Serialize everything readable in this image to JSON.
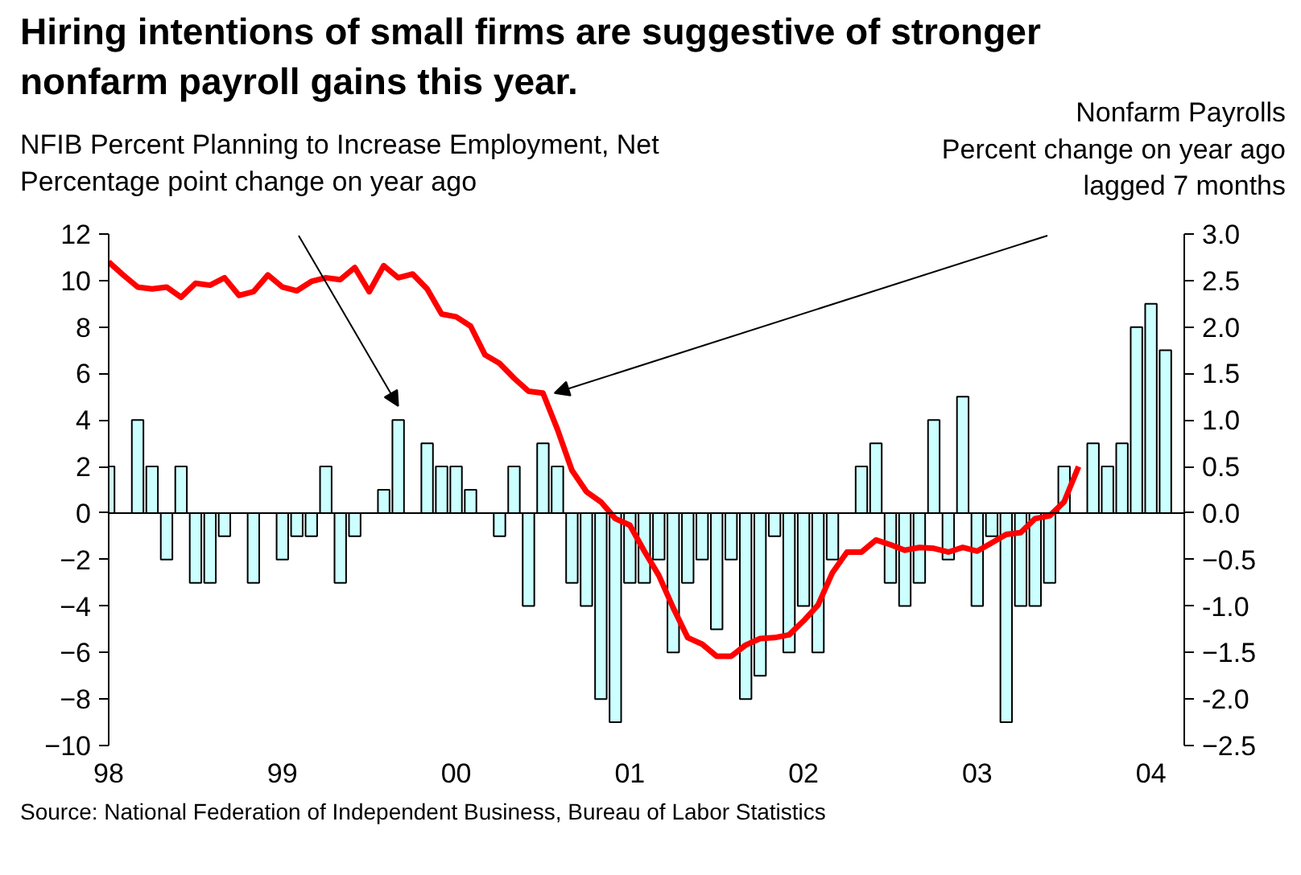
{
  "chart_data": {
    "type": "bar",
    "title": "Hiring intentions of small firms are suggestive of stronger\nnonfarm payroll gains this year.",
    "ylabel": "NFIB Percent Planning to Increase Employment, Net\nPercentage point change on year ago",
    "y2label": "Nonfarm Payrolls\nPercent change on year ago\nlagged 7 months",
    "annotations": [
      "Source: National Federation of Independent Business, Bureau of Labor Statistics"
    ],
    "x": [
      "1998-01",
      "1998-02",
      "1998-03",
      "1998-04",
      "1998-05",
      "1998-06",
      "1998-07",
      "1998-08",
      "1998-09",
      "1998-10",
      "1998-11",
      "1998-12",
      "1999-01",
      "1999-02",
      "1999-03",
      "1999-04",
      "1999-05",
      "1999-06",
      "1999-07",
      "1999-08",
      "1999-09",
      "1999-10",
      "1999-11",
      "1999-12",
      "2000-01",
      "2000-02",
      "2000-03",
      "2000-04",
      "2000-05",
      "2000-06",
      "2000-07",
      "2000-08",
      "2000-09",
      "2000-10",
      "2000-11",
      "2000-12",
      "2001-01",
      "2001-02",
      "2001-03",
      "2001-04",
      "2001-05",
      "2001-06",
      "2001-07",
      "2001-08",
      "2001-09",
      "2001-10",
      "2001-11",
      "2001-12",
      "2002-01",
      "2002-02",
      "2002-03",
      "2002-04",
      "2002-05",
      "2002-06",
      "2002-07",
      "2002-08",
      "2002-09",
      "2002-10",
      "2002-11",
      "2002-12",
      "2003-01",
      "2003-02",
      "2003-03",
      "2003-04",
      "2003-05",
      "2003-06",
      "2003-07",
      "2003-08",
      "2003-09",
      "2003-10",
      "2003-11",
      "2003-12",
      "2004-01",
      "2004-02"
    ],
    "series": [
      {
        "color": "#ccffff",
        "values": [
          2,
          null,
          4,
          2,
          -2,
          2,
          -3,
          -3,
          -1,
          null,
          -3,
          null,
          -2,
          -1,
          -1,
          2,
          -3,
          -1,
          null,
          1,
          4,
          null,
          3,
          2,
          2,
          1,
          null,
          -1,
          2,
          -4,
          3,
          2,
          -3,
          -4,
          -8,
          -9,
          -3,
          -3,
          -2,
          -6,
          -3,
          -2,
          -5,
          -2,
          -8,
          -7,
          -1,
          -6,
          -4,
          -6,
          -2,
          null,
          2,
          3,
          -3,
          -4,
          -3,
          4,
          -2,
          5,
          -4,
          -1,
          -9,
          -4,
          -4,
          -3,
          2,
          null,
          3,
          2,
          3,
          8,
          9,
          7
        ]
      },
      {
        "type": "line",
        "color": "#ff0000",
        "axis": "y2",
        "x": [
          "1998-01",
          "1998-02",
          "1998-03",
          "1998-04",
          "1998-05",
          "1998-06",
          "1998-07",
          "1998-08",
          "1998-09",
          "1998-10",
          "1998-11",
          "1998-12",
          "1999-01",
          "1999-02",
          "1999-03",
          "1999-04",
          "1999-05",
          "1999-06",
          "1999-07",
          "1999-08",
          "1999-09",
          "1999-10",
          "1999-11",
          "1999-12",
          "2000-01",
          "2000-02",
          "2000-03",
          "2000-04",
          "2000-05",
          "2000-06",
          "2000-07",
          "2000-08",
          "2000-09",
          "2000-10",
          "2000-11",
          "2000-12",
          "2001-01",
          "2001-02",
          "2001-03",
          "2001-04",
          "2001-05",
          "2001-06",
          "2001-07",
          "2001-08",
          "2001-09",
          "2001-10",
          "2001-11",
          "2001-12",
          "2002-01",
          "2002-02",
          "2002-03",
          "2002-04",
          "2002-05",
          "2002-06",
          "2002-07",
          "2002-08",
          "2002-09",
          "2002-10",
          "2002-11",
          "2002-12",
          "2003-01",
          "2003-02",
          "2003-03",
          "2003-04",
          "2003-05",
          "2003-06",
          "2003-07",
          "2003-08"
        ],
        "values": [
          2.7,
          2.56,
          2.43,
          2.41,
          2.43,
          2.32,
          2.47,
          2.45,
          2.53,
          2.34,
          2.38,
          2.56,
          2.43,
          2.39,
          2.49,
          2.53,
          2.51,
          2.64,
          2.38,
          2.66,
          2.53,
          2.57,
          2.41,
          2.14,
          2.11,
          2.01,
          1.7,
          1.61,
          1.45,
          1.31,
          1.29,
          0.9,
          0.46,
          0.23,
          0.12,
          -0.06,
          -0.13,
          -0.41,
          -0.67,
          -1.02,
          -1.34,
          -1.41,
          -1.54,
          -1.54,
          -1.42,
          -1.35,
          -1.34,
          -1.31,
          -1.16,
          -0.99,
          -0.64,
          -0.42,
          -0.42,
          -0.29,
          -0.34,
          -0.4,
          -0.37,
          -0.38,
          -0.42,
          -0.37,
          -0.41,
          -0.32,
          -0.23,
          -0.21,
          -0.06,
          -0.03,
          0.12,
          0.5
        ]
      }
    ],
    "xlim": [
      "1998-01",
      "2004-03-10"
    ],
    "xticks": [
      {
        "value": "1998-01",
        "label": "98"
      },
      {
        "value": "1999-01",
        "label": "99"
      },
      {
        "value": "2000-01",
        "label": "00"
      },
      {
        "value": "2001-01",
        "label": "01"
      },
      {
        "value": "2002-01",
        "label": "02"
      },
      {
        "value": "2003-01",
        "label": "03"
      },
      {
        "value": "2004-01",
        "label": "04"
      }
    ],
    "ylim": [
      -10,
      12
    ],
    "yticks": [
      -10,
      -8,
      -6,
      -4,
      -2,
      0,
      2,
      4,
      6,
      8,
      10,
      12
    ],
    "y2lim": [
      -2.5,
      3.0
    ],
    "y2ticks": [
      -2.5,
      {
        "value": -2,
        "label": "-2.0"
      },
      -1.5,
      {
        "value": -1,
        "label": "-1.0"
      },
      -0.5,
      {
        "value": 0,
        "label": "0.0"
      },
      0.5,
      {
        "value": 1,
        "label": "1.0"
      },
      1.5,
      {
        "value": 2,
        "label": "2.0"
      },
      2.5,
      {
        "value": 3,
        "label": "3.0"
      }
    ],
    "ref_lines": [
      {
        "axis": "y",
        "value": 0,
        "color": "#000000"
      }
    ],
    "grid": false
  }
}
